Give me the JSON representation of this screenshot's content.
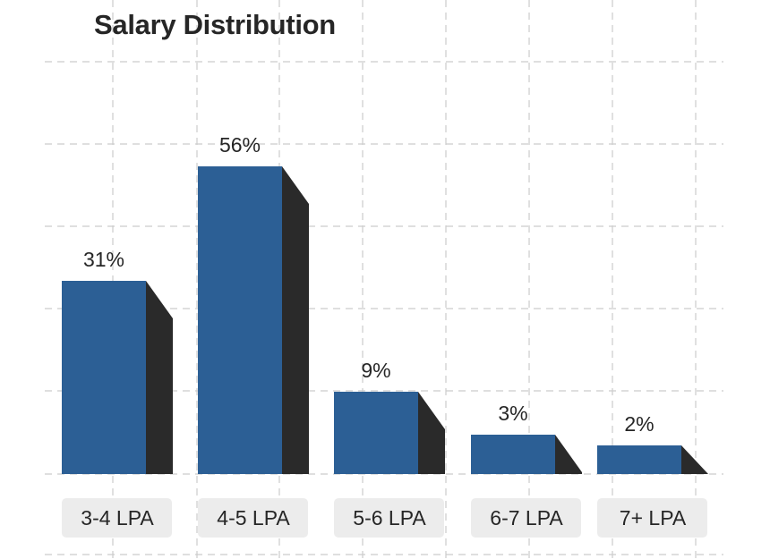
{
  "chart_data": {
    "type": "bar",
    "title": "Salary Distribution",
    "categories": [
      "3-4 LPA",
      "4-5 LPA",
      "5-6 LPA",
      "6-7 LPA",
      "7+ LPA"
    ],
    "values": [
      31,
      56,
      9,
      3,
      2
    ],
    "value_labels": [
      "31%",
      "56%",
      "9%",
      "3%",
      "2%"
    ],
    "grid": true,
    "style": "3d bars",
    "colors": {
      "bar_front": "#2c5f95",
      "bar_side": "#2a2a2a",
      "label_box": "#ececec",
      "grid": "#cccccc",
      "text": "#262626"
    }
  }
}
